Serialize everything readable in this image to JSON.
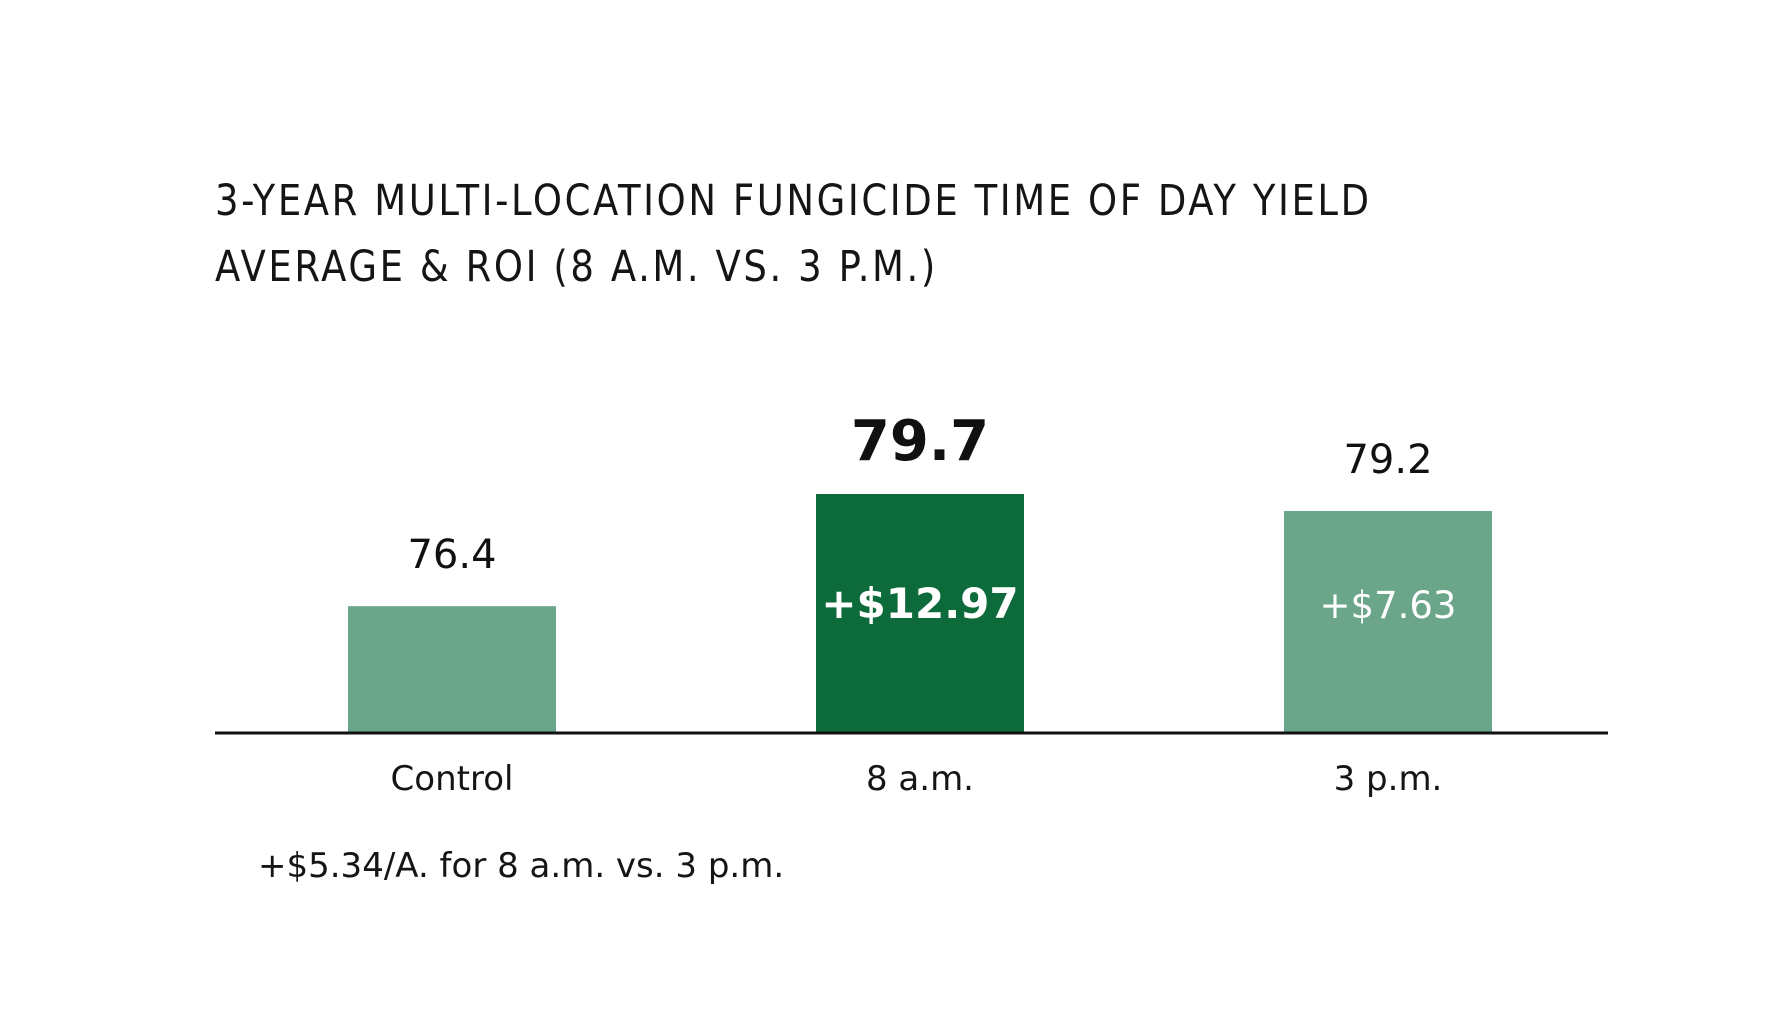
{
  "chart_data": {
    "type": "bar",
    "title_lines": [
      "3-YEAR MULTI-LOCATION FUNGICIDE TIME OF DAY YIELD",
      "AVERAGE & ROI (8 A.M. VS. 3 P.M.)"
    ],
    "categories": [
      "Control",
      "8 a.m.",
      "3 p.m."
    ],
    "values": [
      76.4,
      79.7,
      79.2
    ],
    "value_labels": [
      "76.4",
      "79.7",
      "79.2"
    ],
    "roi_labels": [
      "",
      "+$12.97",
      "+$7.63"
    ],
    "highlight_index": 1,
    "ylim": [
      72.7,
      79.7
    ],
    "annotation": "+$5.34/A. for 8 a.m. vs. 3 p.m.",
    "grid": false,
    "colors": {
      "bar": "#6ba58a",
      "highlight_bar": "#0d6a3b",
      "axis": "#111111",
      "roi_text": "#ffffff"
    }
  }
}
